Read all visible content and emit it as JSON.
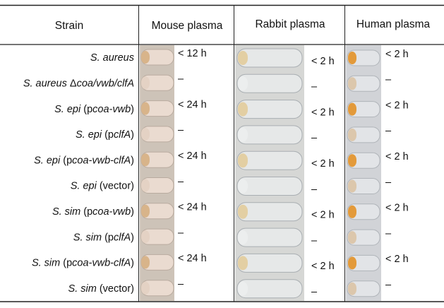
{
  "table": {
    "header": [
      "Strain",
      "Mouse plasma",
      "Rabbit plasma",
      "Human plasma"
    ],
    "rows": [
      {
        "strain": [
          "S. aureus"
        ],
        "mouse": "< 12 h",
        "rabbit": "< 2 h",
        "human": "< 2 h"
      },
      {
        "strain": [
          "S. aureus ",
          "Δ",
          "coa/vwb/clfA"
        ],
        "mouse": "–",
        "rabbit": "–",
        "human": "–"
      },
      {
        "strain": [
          "S. epi",
          " (p",
          "coa-vwb",
          ")"
        ],
        "mouse": "< 24 h",
        "rabbit": "< 2 h",
        "human": "< 2 h"
      },
      {
        "strain": [
          "S. epi",
          " (p",
          "clfA",
          ")"
        ],
        "mouse": "–",
        "rabbit": "–",
        "human": "–"
      },
      {
        "strain": [
          "S. epi",
          " (p",
          "coa-vwb-clfA",
          ")"
        ],
        "mouse": "< 24 h",
        "rabbit": "< 2 h",
        "human": "< 2 h"
      },
      {
        "strain": [
          "S. epi",
          " (vector)"
        ],
        "mouse": "–",
        "rabbit": "–",
        "human": "–"
      },
      {
        "strain": [
          "S. sim",
          " (p",
          "coa-vwb",
          ")"
        ],
        "mouse": "< 24 h",
        "rabbit": "< 2 h",
        "human": "< 2 h"
      },
      {
        "strain": [
          "S. sim",
          " (p",
          "clfA",
          ")"
        ],
        "mouse": "–",
        "rabbit": "–",
        "human": "–"
      },
      {
        "strain": [
          "S. sim",
          " (p",
          "coa-vwb-clfA",
          ")"
        ],
        "mouse": "< 24 h",
        "rabbit": "< 2 h",
        "human": "< 2 h"
      },
      {
        "strain": [
          "S. sim",
          " (vector)"
        ],
        "mouse": "–",
        "rabbit": "–",
        "human": "–"
      }
    ]
  }
}
